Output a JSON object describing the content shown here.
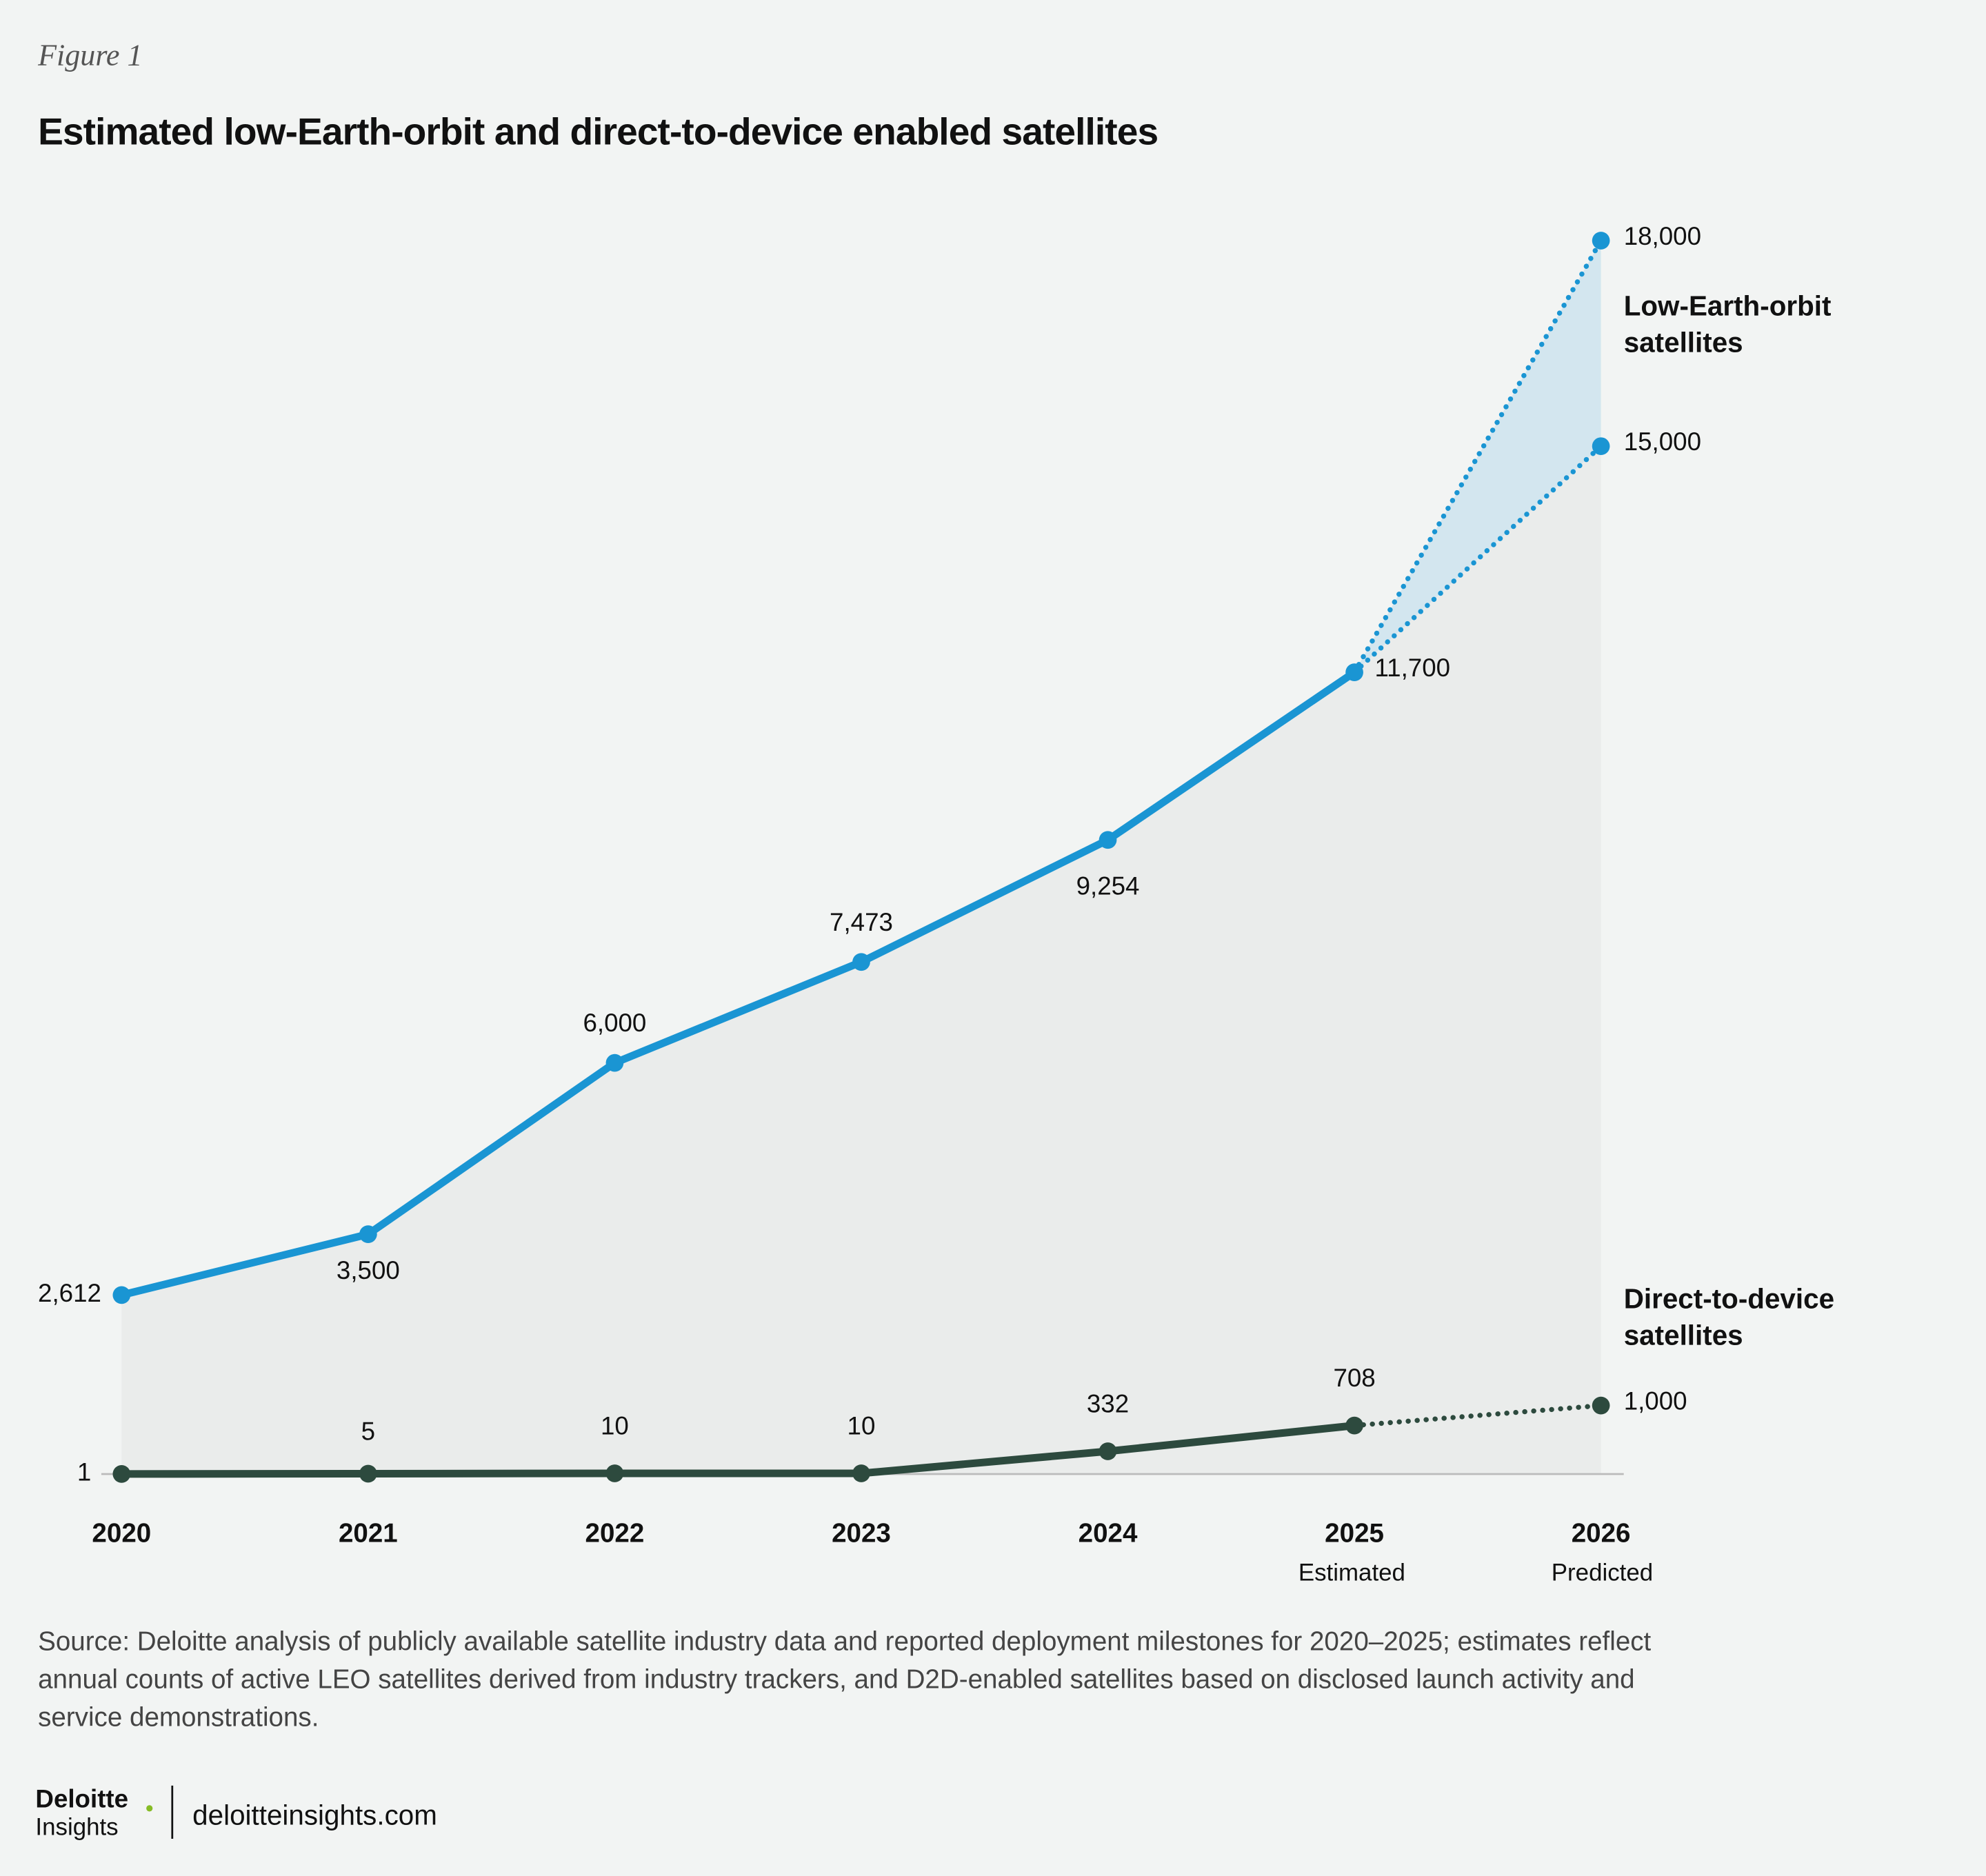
{
  "figure_label": "Figure 1",
  "chart_data": {
    "type": "line",
    "title": "Estimated low-Earth-orbit and direct-to-device enabled satellites",
    "categories": [
      "2020",
      "2021",
      "2022",
      "2023",
      "2024",
      "2025",
      "2026"
    ],
    "category_notes": [
      null,
      null,
      null,
      null,
      null,
      "Estimated",
      "Predicted"
    ],
    "ylim": [
      0,
      18000
    ],
    "series": [
      {
        "name": "Low-Earth-orbit satellites",
        "color": "#1a95d3",
        "values": [
          2612,
          3500,
          6000,
          7473,
          9254,
          11700,
          null
        ],
        "value_labels": [
          "2,612",
          "3,500",
          "6,000",
          "7,473",
          "9,254",
          "11,700",
          null
        ],
        "forecast": [
          18000,
          15000
        ],
        "forecast_labels": [
          "18,000",
          "15,000"
        ]
      },
      {
        "name": "Direct-to-device satellites",
        "color": "#2d4a3e",
        "values": [
          1,
          5,
          10,
          10,
          332,
          708,
          null
        ],
        "forecast": [
          1000
        ],
        "forecast_labels": [
          "1,000"
        ]
      }
    ],
    "source": "Source: Deloitte analysis of publicly available satellite industry data and reported deployment milestones for 2020–2025; estimates reflect annual counts of active LEO satellites derived from industry trackers, and D2D-enabled satellites based on disclosed launch activity and service demonstrations."
  },
  "footer": {
    "brand": "Deloitte",
    "brand_sub": "Insights",
    "url": "deloitteinsights.com"
  }
}
